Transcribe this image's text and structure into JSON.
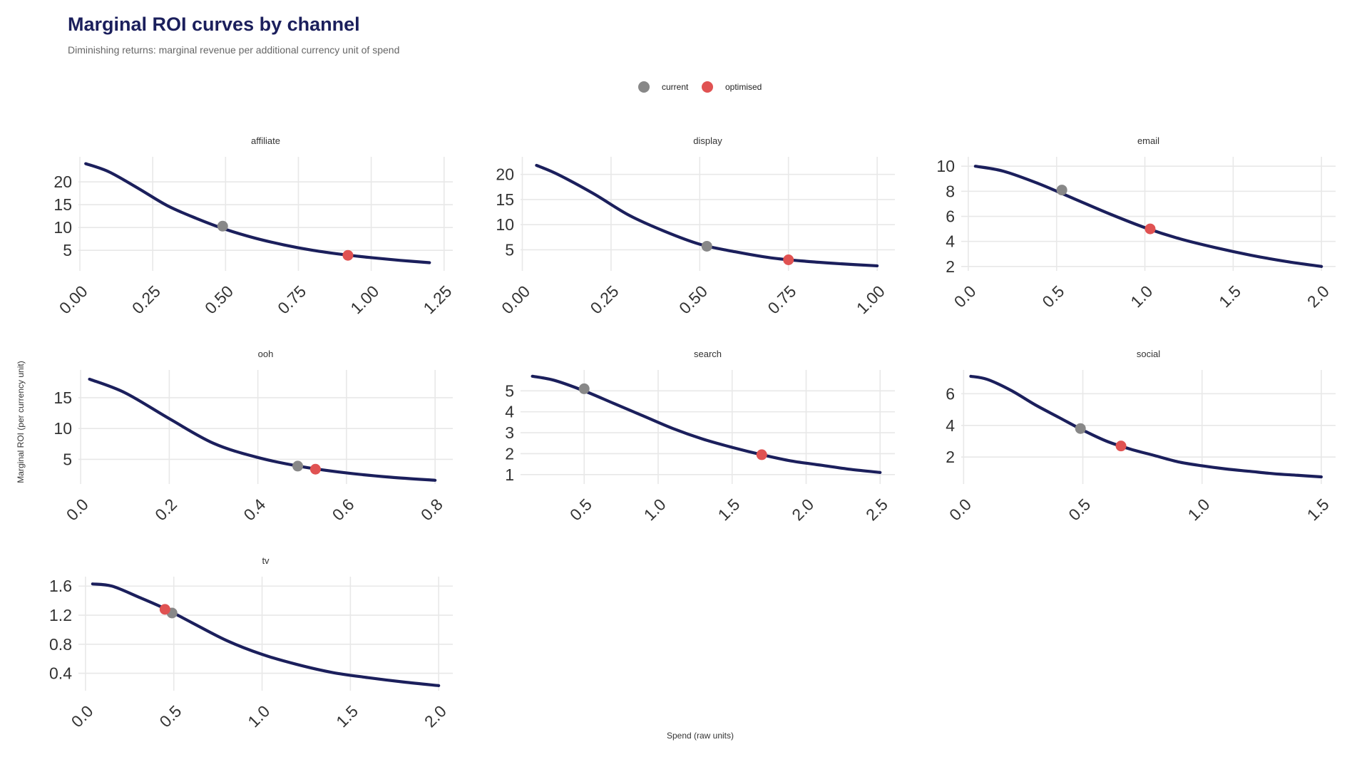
{
  "chart_data": {
    "type": "line",
    "title": "Marginal ROI curves by channel",
    "subtitle": "Diminishing returns: marginal revenue per additional currency unit of spend",
    "xlabel": "Spend (raw units)",
    "ylabel": "Marginal ROI (per currency unit)",
    "legend": {
      "placement": "top-center",
      "entries": [
        {
          "name": "current",
          "color": "#888888"
        },
        {
          "name": "optimised",
          "color": "#e05252"
        }
      ]
    },
    "colors": {
      "curve": "#1b1f5c",
      "current": "#888888",
      "optimised": "#e05252",
      "title": "#1b1f5c"
    },
    "grid": true,
    "panels": [
      {
        "name": "affiliate",
        "xlim": [
          -0.005,
          1.28
        ],
        "ylim": [
          0.5,
          25.5
        ],
        "xticks": [
          0,
          0.25,
          0.5,
          0.75,
          1,
          1.25
        ],
        "xtick_labels": [
          "0.00",
          "0.25",
          "0.50",
          "0.75",
          "1.00",
          "1.25"
        ],
        "yticks": [
          5,
          10,
          15,
          20
        ],
        "ytick_labels": [
          "5",
          "10",
          "15",
          "20"
        ],
        "curve": {
          "x": [
            0.02,
            0.1,
            0.2,
            0.3,
            0.4,
            0.5,
            0.6,
            0.7,
            0.8,
            0.9,
            1.0,
            1.1,
            1.2
          ],
          "y": [
            24.0,
            22.2,
            18.6,
            14.8,
            12.0,
            9.6,
            7.7,
            6.2,
            5.0,
            4.1,
            3.4,
            2.8,
            2.3
          ]
        },
        "current": {
          "x": 0.49,
          "y": 10.3
        },
        "optimised": {
          "x": 0.92,
          "y": 3.9
        }
      },
      {
        "name": "display",
        "xlim": [
          -0.005,
          1.05
        ],
        "ylim": [
          0.8,
          23.5
        ],
        "xticks": [
          0,
          0.25,
          0.5,
          0.75,
          1
        ],
        "xtick_labels": [
          "0.00",
          "0.25",
          "0.50",
          "0.75",
          "1.00"
        ],
        "yticks": [
          5,
          10,
          15,
          20
        ],
        "ytick_labels": [
          "5",
          "10",
          "15",
          "20"
        ],
        "curve": {
          "x": [
            0.04,
            0.1,
            0.2,
            0.3,
            0.4,
            0.5,
            0.6,
            0.7,
            0.8,
            0.9,
            1.0
          ],
          "y": [
            21.8,
            20.0,
            16.2,
            11.9,
            8.7,
            6.1,
            4.6,
            3.4,
            2.7,
            2.2,
            1.8
          ]
        },
        "current": {
          "x": 0.52,
          "y": 5.7
        },
        "optimised": {
          "x": 0.75,
          "y": 3.0
        }
      },
      {
        "name": "email",
        "xlim": [
          -0.04,
          2.08
        ],
        "ylim": [
          1.65,
          10.75
        ],
        "xticks": [
          0,
          0.5,
          1,
          1.5,
          2
        ],
        "xtick_labels": [
          "0.0",
          "0.5",
          "1.0",
          "1.5",
          "2.0"
        ],
        "yticks": [
          2,
          4,
          6,
          8,
          10
        ],
        "ytick_labels": [
          "2",
          "4",
          "6",
          "8",
          "10"
        ],
        "curve": {
          "x": [
            0.04,
            0.2,
            0.4,
            0.6,
            0.8,
            1.0,
            1.2,
            1.4,
            1.6,
            1.8,
            2.0
          ],
          "y": [
            10.0,
            9.6,
            8.6,
            7.4,
            6.2,
            5.1,
            4.2,
            3.5,
            2.9,
            2.4,
            2.0
          ]
        },
        "current": {
          "x": 0.53,
          "y": 8.1
        },
        "optimised": {
          "x": 1.03,
          "y": 5.0
        }
      },
      {
        "name": "ooh",
        "xlim": [
          -0.005,
          0.84
        ],
        "ylim": [
          1.0,
          19.5
        ],
        "xticks": [
          0,
          0.2,
          0.4,
          0.6,
          0.8
        ],
        "xtick_labels": [
          "0.0",
          "0.2",
          "0.4",
          "0.6",
          "0.8"
        ],
        "yticks": [
          5,
          10,
          15
        ],
        "ytick_labels": [
          "5",
          "10",
          "15"
        ],
        "curve": {
          "x": [
            0.02,
            0.1,
            0.2,
            0.3,
            0.4,
            0.5,
            0.6,
            0.7,
            0.8
          ],
          "y": [
            18.0,
            15.8,
            11.6,
            7.6,
            5.3,
            3.8,
            2.8,
            2.1,
            1.6
          ]
        },
        "current": {
          "x": 0.49,
          "y": 3.9
        },
        "optimised": {
          "x": 0.53,
          "y": 3.4
        }
      },
      {
        "name": "search",
        "xlim": [
          0.07,
          2.6
        ],
        "ylim": [
          0.55,
          6.0
        ],
        "xticks": [
          0.5,
          1,
          1.5,
          2,
          2.5
        ],
        "xtick_labels": [
          "0.5",
          "1.0",
          "1.5",
          "2.0",
          "2.5"
        ],
        "yticks": [
          1,
          2,
          3,
          4,
          5
        ],
        "ytick_labels": [
          "1",
          "2",
          "3",
          "4",
          "5"
        ],
        "curve": {
          "x": [
            0.15,
            0.3,
            0.5,
            0.7,
            0.9,
            1.1,
            1.3,
            1.5,
            1.7,
            1.9,
            2.1,
            2.3,
            2.5
          ],
          "y": [
            5.7,
            5.5,
            5.0,
            4.4,
            3.8,
            3.2,
            2.7,
            2.3,
            1.95,
            1.65,
            1.45,
            1.25,
            1.1
          ]
        },
        "current": {
          "x": 0.5,
          "y": 5.1
        },
        "optimised": {
          "x": 1.7,
          "y": 1.95
        }
      },
      {
        "name": "social",
        "xlim": [
          -0.01,
          1.56
        ],
        "ylim": [
          0.3,
          7.5
        ],
        "xticks": [
          0,
          0.5,
          1,
          1.5
        ],
        "xtick_labels": [
          "0.0",
          "0.5",
          "1.0",
          "1.5"
        ],
        "yticks": [
          2,
          4,
          6
        ],
        "ytick_labels": [
          "2",
          "4",
          "6"
        ],
        "curve": {
          "x": [
            0.03,
            0.1,
            0.2,
            0.3,
            0.4,
            0.5,
            0.6,
            0.7,
            0.8,
            0.9,
            1.0,
            1.1,
            1.2,
            1.3,
            1.4,
            1.5
          ],
          "y": [
            7.1,
            6.9,
            6.2,
            5.3,
            4.5,
            3.7,
            3.0,
            2.5,
            2.1,
            1.7,
            1.45,
            1.25,
            1.1,
            0.95,
            0.85,
            0.75
          ]
        },
        "current": {
          "x": 0.49,
          "y": 3.8
        },
        "optimised": {
          "x": 0.66,
          "y": 2.7
        }
      },
      {
        "name": "tv",
        "xlim": [
          -0.04,
          2.08
        ],
        "ylim": [
          0.16,
          1.73
        ],
        "xticks": [
          0,
          0.5,
          1,
          1.5,
          2
        ],
        "xtick_labels": [
          "0.0",
          "0.5",
          "1.0",
          "1.5",
          "2.0"
        ],
        "yticks": [
          0.4,
          0.8,
          1.2,
          1.6
        ],
        "ytick_labels": [
          "0.4",
          "0.8",
          "1.2",
          "1.6"
        ],
        "curve": {
          "x": [
            0.04,
            0.15,
            0.3,
            0.45,
            0.6,
            0.8,
            1.0,
            1.2,
            1.4,
            1.6,
            1.8,
            2.0
          ],
          "y": [
            1.63,
            1.6,
            1.45,
            1.29,
            1.1,
            0.85,
            0.66,
            0.52,
            0.41,
            0.34,
            0.28,
            0.23
          ]
        },
        "current": {
          "x": 0.49,
          "y": 1.23
        },
        "optimised": {
          "x": 0.45,
          "y": 1.28
        }
      }
    ]
  }
}
